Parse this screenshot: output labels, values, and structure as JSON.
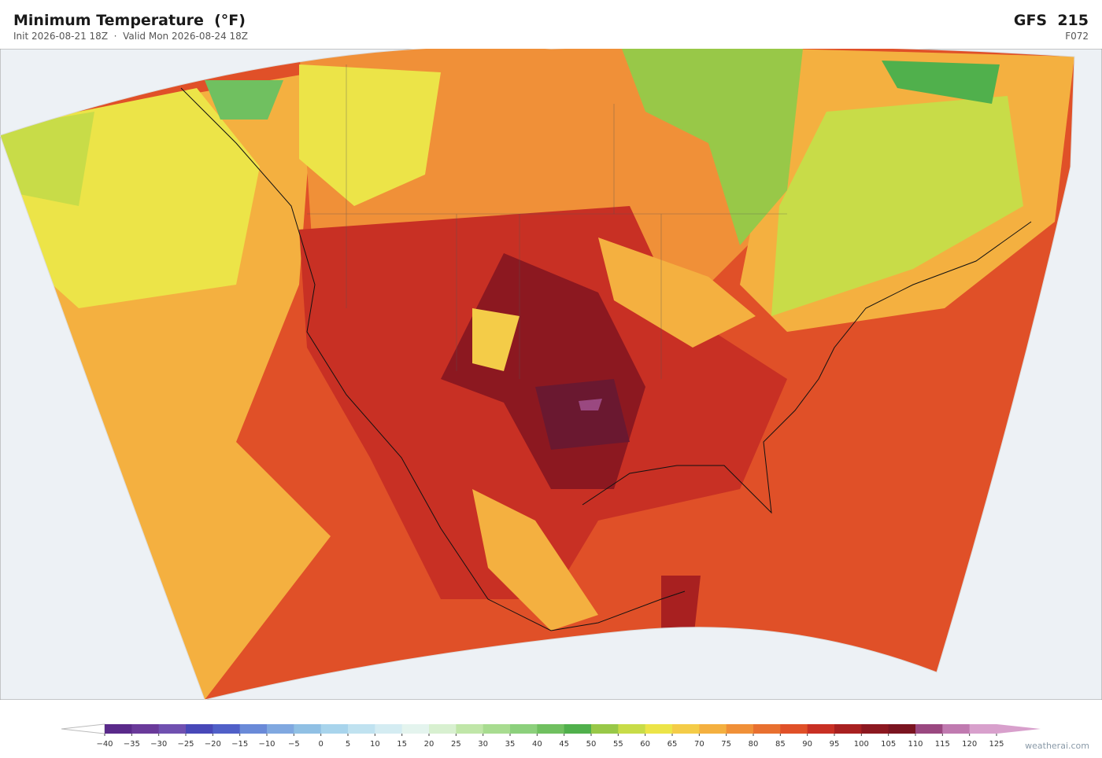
{
  "header": {
    "title": "Minimum Temperature  (°F)",
    "subtitle": "Init 2026-08-21 18Z  ·  Valid Mon 2026-08-24 18Z",
    "model": "GFS  215",
    "forecast_hour": "F072"
  },
  "colorbar": {
    "ticks": [
      {
        "value": -40,
        "label": "−40"
      },
      {
        "value": -35,
        "label": "−35"
      },
      {
        "value": -30,
        "label": "−30"
      },
      {
        "value": -25,
        "label": "−25"
      },
      {
        "value": -20,
        "label": "−20"
      },
      {
        "value": -15,
        "label": "−15"
      },
      {
        "value": -10,
        "label": "−10"
      },
      {
        "value": -5,
        "label": "−5"
      },
      0,
      5,
      10,
      15,
      20,
      25,
      30,
      35,
      40,
      45,
      50,
      55,
      60,
      65,
      70,
      75,
      80,
      85,
      90,
      95,
      100,
      105,
      110,
      115,
      120,
      125
    ],
    "colors": [
      "#5a2a8a",
      "#6a3a9a",
      "#7050b0",
      "#4848b8",
      "#5060c8",
      "#6a8ad8",
      "#80a8e0",
      "#90c0e4",
      "#a8d4ec",
      "#c0e2f0",
      "#d4ecf2",
      "#e4f4ee",
      "#d8f0d0",
      "#c0e6a8",
      "#a8dc90",
      "#8cd07c",
      "#70c060",
      "#50b04c",
      "#98c848",
      "#c8dc48",
      "#ece448",
      "#f4cc48",
      "#f4b040",
      "#f09038",
      "#e87030",
      "#e05028",
      "#c83024",
      "#a82020",
      "#8c1820",
      "#7a1420",
      "#9a4880",
      "#c07ab0",
      "#d8a0cc"
    ],
    "under_color": "#ffffff",
    "over_color": "#d8a0cc"
  },
  "footer": {
    "credit": "weatherai.com"
  }
}
